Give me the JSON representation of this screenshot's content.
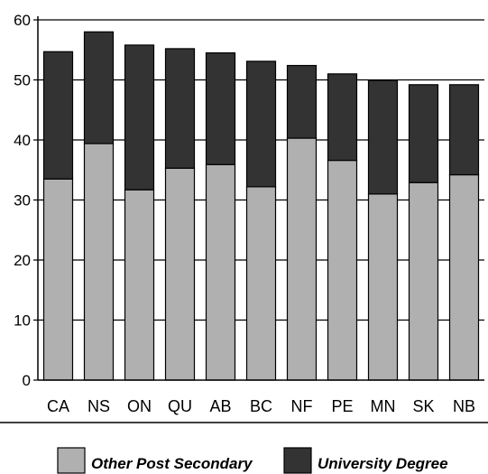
{
  "chart_data": {
    "type": "bar",
    "stacked": true,
    "categories": [
      "CA",
      "NS",
      "ON",
      "QU",
      "AB",
      "BC",
      "NF",
      "PE",
      "MN",
      "SK",
      "NB"
    ],
    "series": [
      {
        "name": "Other Post Secondary",
        "color": "#b0b0b0",
        "values": [
          33.5,
          39.4,
          31.7,
          35.3,
          35.9,
          32.2,
          40.3,
          36.6,
          31.0,
          32.9,
          34.2
        ]
      },
      {
        "name": "University Degree",
        "color": "#333333",
        "values": [
          21.2,
          18.6,
          24.1,
          19.9,
          18.6,
          20.9,
          12.1,
          14.4,
          18.9,
          16.3,
          15.0
        ]
      }
    ],
    "ylim": [
      0,
      60
    ],
    "yticks": [
      0,
      10,
      20,
      30,
      40,
      50,
      60
    ],
    "grid": true,
    "legend_position": "bottom"
  }
}
